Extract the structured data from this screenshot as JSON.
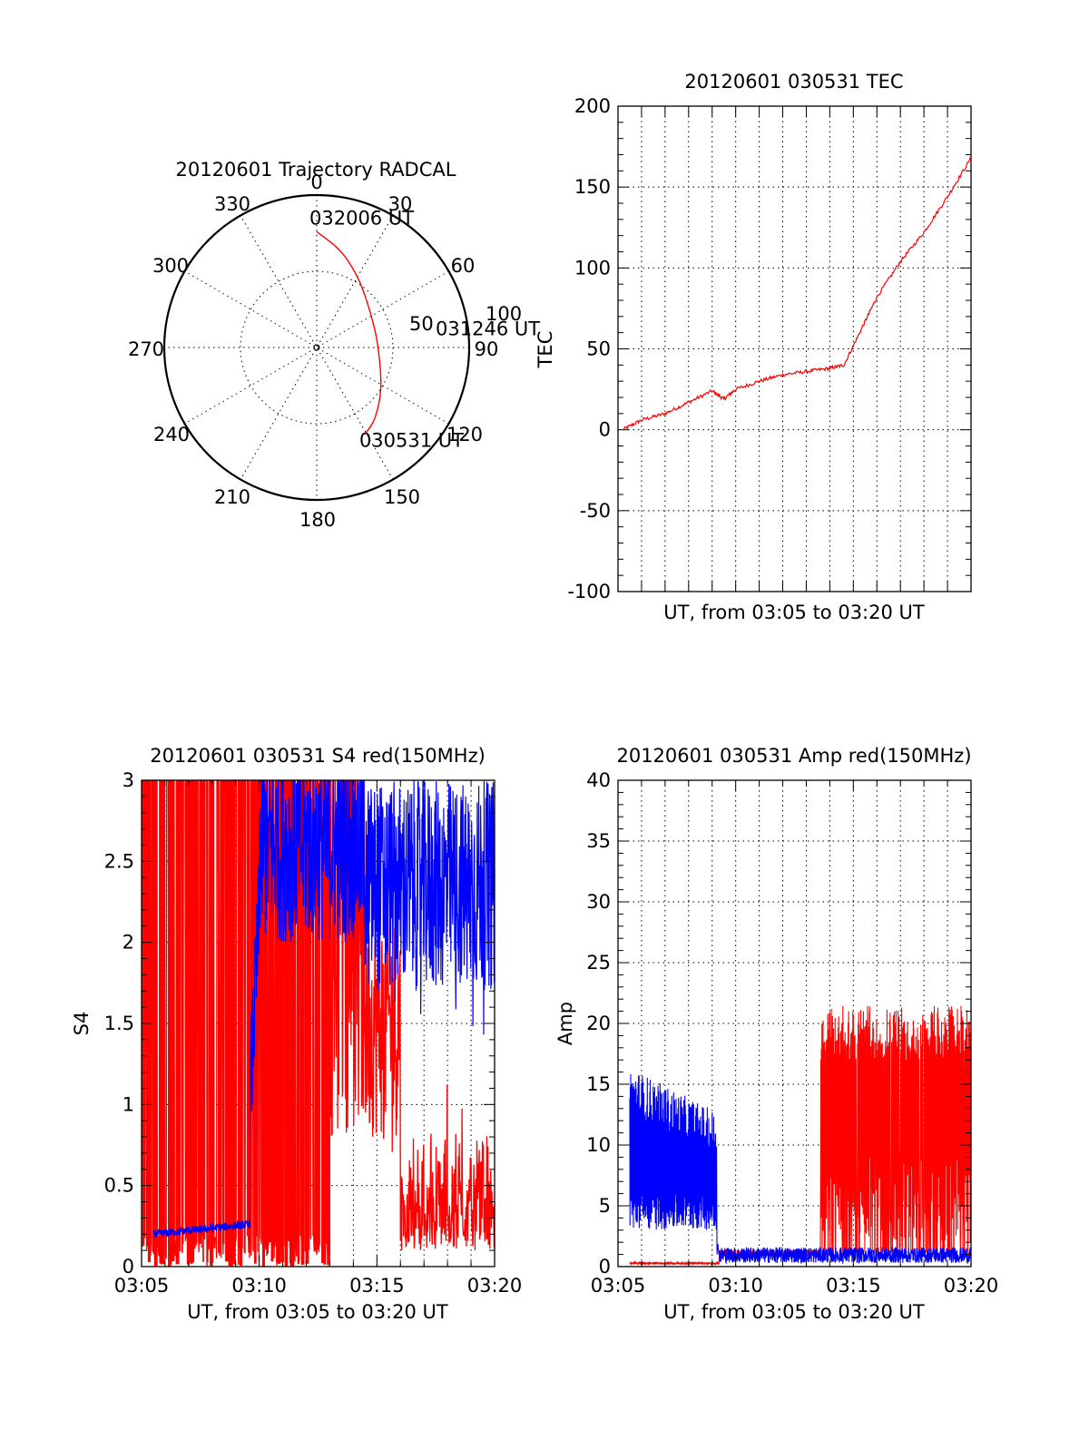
{
  "chart_data": [
    {
      "id": "trajectory",
      "type": "polar",
      "title": "20120601 Trajectory RADCAL",
      "angle_labels": [
        "0",
        "30",
        "60",
        "90",
        "120",
        "150",
        "180",
        "210",
        "240",
        "270",
        "300",
        "330"
      ],
      "radius_labels": [
        "50",
        "100"
      ],
      "radius_max": 100,
      "grid": true,
      "series": [
        {
          "color": "#ff0000",
          "points": [
            {
              "az": 0,
              "r": 76
            },
            {
              "az": 14,
              "r": 66
            },
            {
              "az": 28,
              "r": 55
            },
            {
              "az": 40,
              "r": 48
            },
            {
              "az": 57,
              "r": 42
            },
            {
              "az": 72,
              "r": 40
            },
            {
              "az": 86,
              "r": 40
            },
            {
              "az": 101,
              "r": 42
            },
            {
              "az": 116,
              "r": 47
            },
            {
              "az": 128,
              "r": 53
            },
            {
              "az": 140,
              "r": 60
            },
            {
              "az": 146,
              "r": 63
            },
            {
              "az": 151,
              "r": 65
            }
          ]
        }
      ],
      "annotations": [
        {
          "text": "032006 UT",
          "az": 0,
          "r": 76
        },
        {
          "text": "031246 UT",
          "az": 86,
          "r": 40
        },
        {
          "text": "030531 UT",
          "az": 151,
          "r": 65
        }
      ]
    },
    {
      "id": "tec",
      "type": "line",
      "title": "20120601 030531 TEC",
      "xlabel": "UT, from 03:05 to 03:20 UT",
      "ylabel": "TEC",
      "xlim": [
        0,
        15
      ],
      "ylim": [
        -100,
        200
      ],
      "yticks": [
        "-100",
        "-50",
        "0",
        "50",
        "100",
        "150",
        "200"
      ],
      "xticks": [],
      "grid": true,
      "series": [
        {
          "color": "#ff0000",
          "x": [
            0.2,
            1,
            2,
            3,
            4,
            4.5,
            5,
            6,
            7,
            8,
            9,
            9.6,
            10.4,
            11,
            12,
            13,
            14,
            15
          ],
          "y": [
            0,
            6,
            10,
            17,
            24,
            19,
            25,
            30,
            34,
            36,
            38,
            40,
            64,
            82,
            104,
            122,
            144,
            168
          ]
        }
      ]
    },
    {
      "id": "s4",
      "type": "line",
      "title": "20120601 030531 S4 red(150MHz)",
      "xlabel": "UT, from 03:05 to 03:20 UT",
      "ylabel": "S4",
      "xlim": [
        0,
        15
      ],
      "ylim": [
        0,
        3
      ],
      "yticks": [
        "0",
        "0.5",
        "1",
        "1.5",
        "2",
        "2.5",
        "3"
      ],
      "xticks": [
        "03:05",
        "03:10",
        "03:15",
        "03:20"
      ],
      "grid": true,
      "series": [
        {
          "color": "#ff0000",
          "note": "saturated spikes 03:05-03:13, then decaying to ~0.1-0.6"
        },
        {
          "color": "#0000ff",
          "note": "~0.2-0.27 until 03:09, then 1.5-3"
        }
      ]
    },
    {
      "id": "amp",
      "type": "line",
      "title": "20120601 030531 Amp red(150MHz)",
      "xlabel": "UT, from 03:05 to 03:20 UT",
      "ylabel": "Amp",
      "xlim": [
        0,
        15
      ],
      "ylim": [
        0,
        40
      ],
      "yticks": [
        "0",
        "5",
        "10",
        "15",
        "20",
        "25",
        "30",
        "35",
        "40"
      ],
      "xticks": [
        "03:05",
        "03:10",
        "03:15",
        "03:20"
      ],
      "grid": true,
      "series": [
        {
          "color": "#0000ff",
          "note": "~5-15 until 03:10, then ~0.5-1.5"
        },
        {
          "color": "#ff0000",
          "note": "~0.2 until 03:10, then ~2-21 after 03:14"
        }
      ]
    }
  ]
}
